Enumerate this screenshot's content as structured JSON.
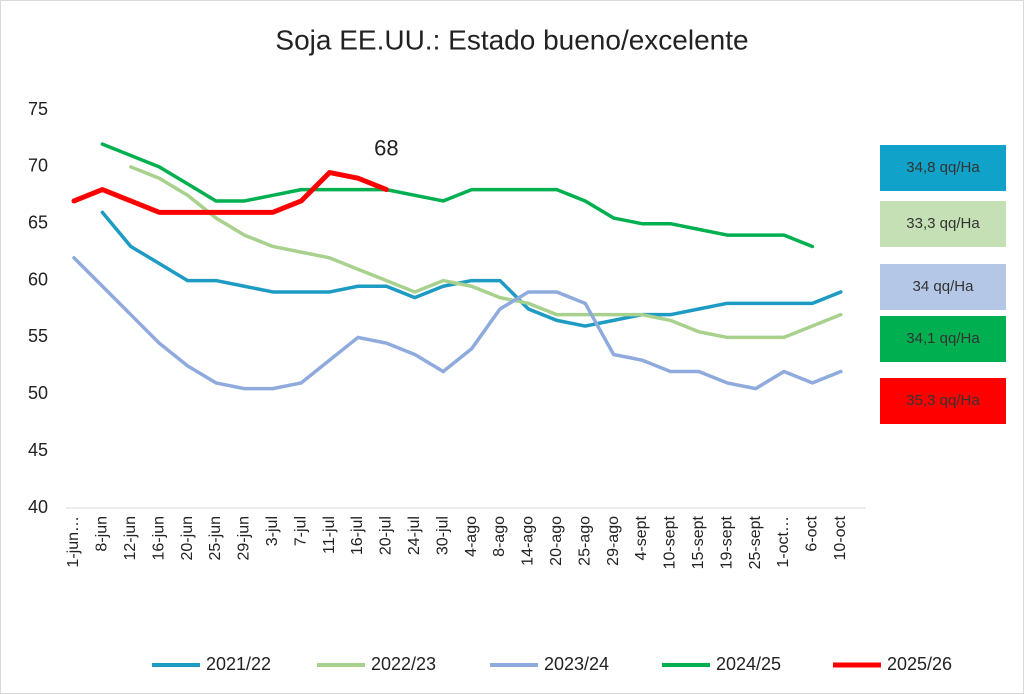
{
  "chart_data": {
    "type": "line",
    "title": "Soja EE.UU.: Estado bueno/excelente",
    "categories": [
      "1-jun…",
      "8-jun",
      "12-jun",
      "16-jun",
      "20-jun",
      "25-jun",
      "29-jun",
      "3-jul",
      "7-jul",
      "11-jul",
      "16-jul",
      "20-jul",
      "24-jul",
      "30-jul",
      "4-ago",
      "8-ago",
      "14-ago",
      "20-ago",
      "25-ago",
      "29-ago",
      "4-sept",
      "10-sept",
      "15-sept",
      "19-sept",
      "25-sept",
      "1-oct…",
      "6-oct",
      "10-oct"
    ],
    "ylim": [
      40,
      75
    ],
    "yticks": [
      40,
      45,
      50,
      55,
      60,
      65,
      70,
      75
    ],
    "grid": false,
    "annotations": [
      {
        "text": "68",
        "series": 4,
        "index": 11
      }
    ],
    "series": [
      {
        "name": "2021/22",
        "color": "#1d9bc2",
        "box_label": "34,8 qq/Ha",
        "box_color": "#10a2c9",
        "values": [
          null,
          66,
          63,
          61.5,
          60,
          60,
          59.5,
          59,
          59,
          59,
          59.5,
          59.5,
          58.5,
          59.5,
          60,
          60,
          57.5,
          56.5,
          56,
          56.5,
          57,
          57,
          57.5,
          58,
          58,
          58,
          58,
          59
        ]
      },
      {
        "name": "2022/23",
        "color": "#a9d18e",
        "box_label": "33,3 qq/Ha",
        "box_color": "#c5e0b4",
        "values": [
          null,
          null,
          70,
          69,
          67.5,
          65.5,
          64,
          63,
          62.5,
          62,
          61,
          60,
          59,
          60,
          59.5,
          58.5,
          58,
          57,
          57,
          57,
          57,
          56.5,
          55.5,
          55,
          55,
          55,
          56,
          57
        ]
      },
      {
        "name": "2023/24",
        "color": "#8faadc",
        "box_label": "34 qq/Ha",
        "box_color": "#b4c7e7",
        "values": [
          62,
          59.5,
          57,
          54.5,
          52.5,
          51,
          50.5,
          50.5,
          51,
          53,
          55,
          54.5,
          53.5,
          52,
          54,
          57.5,
          59,
          59,
          58,
          53.5,
          53,
          52,
          52,
          51,
          50.5,
          52,
          51,
          52
        ]
      },
      {
        "name": "2024/25",
        "color": "#00b050",
        "box_label": "34,1 qq/Ha",
        "box_color": "#00b050",
        "values": [
          null,
          72,
          71,
          70,
          68.5,
          67,
          67,
          67.5,
          68,
          68,
          68,
          68,
          67.5,
          67,
          68,
          68,
          68,
          68,
          67,
          65.5,
          65,
          65,
          64.5,
          64,
          64,
          64,
          63,
          null
        ]
      },
      {
        "name": "2025/26",
        "color": "#ff0000",
        "box_label": "35,3 qq/Ha",
        "box_color": "#ff0000",
        "values": [
          67,
          68,
          67,
          66,
          66,
          66,
          66,
          66,
          67,
          69.5,
          69,
          68,
          null,
          null,
          null,
          null,
          null,
          null,
          null,
          null,
          null,
          null,
          null,
          null,
          null,
          null,
          null,
          null
        ]
      }
    ]
  }
}
